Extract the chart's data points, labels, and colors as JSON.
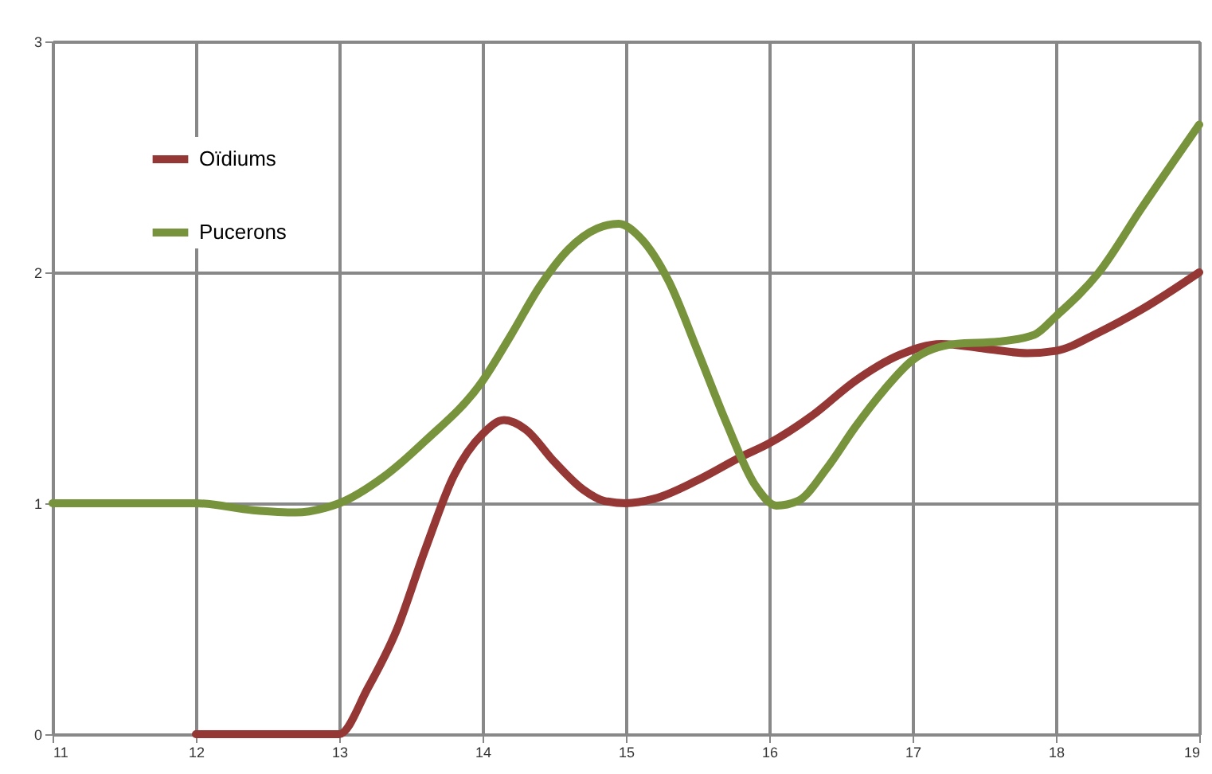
{
  "chart_data": {
    "type": "line",
    "xlim": [
      11,
      19
    ],
    "xticks": [
      11,
      12,
      13,
      14,
      15,
      16,
      17,
      18,
      19
    ],
    "ylim": [
      0,
      3
    ],
    "yticks": [
      0,
      1,
      2,
      3
    ],
    "grid": true,
    "legend": "top left",
    "line_style": "solid",
    "marker": "none",
    "series": [
      {
        "name": "Oïdiums",
        "color": "#953735",
        "x": [
          12,
          13,
          13.2,
          13.4,
          13.6,
          13.8,
          14,
          14.15,
          14.3,
          14.5,
          14.7,
          14.85,
          15,
          15.2,
          15.5,
          15.8,
          16,
          16.3,
          16.6,
          16.9,
          17.2,
          17.5,
          17.8,
          18,
          18.3,
          18.6,
          19
        ],
        "values": [
          0,
          0,
          0.2,
          0.45,
          0.8,
          1.12,
          1.3,
          1.36,
          1.32,
          1.18,
          1.06,
          1.01,
          1.0,
          1.02,
          1.1,
          1.2,
          1.26,
          1.38,
          1.53,
          1.64,
          1.69,
          1.67,
          1.65,
          1.66,
          1.74,
          1.84,
          2.0
        ]
      },
      {
        "name": "Pucerons",
        "color": "#77933c",
        "x": [
          11,
          12,
          12.4,
          12.7,
          12.9,
          13,
          13.3,
          13.6,
          14,
          14.2,
          14.4,
          14.6,
          14.8,
          14.95,
          15.1,
          15.3,
          15.5,
          15.7,
          15.9,
          16.05,
          16.2,
          16.4,
          16.6,
          16.8,
          17,
          17.3,
          17.6,
          17.85,
          18,
          18.3,
          18.6,
          19
        ],
        "values": [
          1.0,
          1.0,
          0.97,
          0.96,
          0.98,
          1.0,
          1.11,
          1.27,
          1.53,
          1.73,
          1.94,
          2.1,
          2.19,
          2.21,
          2.15,
          1.96,
          1.66,
          1.35,
          1.08,
          0.99,
          1.01,
          1.15,
          1.33,
          1.49,
          1.62,
          1.69,
          1.7,
          1.73,
          1.81,
          2.0,
          2.28,
          2.64
        ]
      }
    ]
  }
}
